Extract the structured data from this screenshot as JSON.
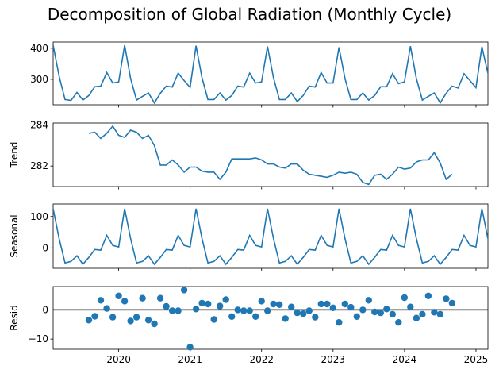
{
  "title": "Decomposition of Global Radiation (Monthly Cycle)",
  "chart_data": [
    {
      "name": "observed",
      "type": "line",
      "ylabel": "",
      "ylim": [
        218,
        420
      ],
      "yticks": [
        300,
        400
      ],
      "ytick_labels": [
        "300",
        "400"
      ],
      "color": "#1f77b4",
      "x_start": 2019.083,
      "x_step": 0.08333,
      "values": [
        410,
        310,
        235,
        232,
        258,
        233,
        248,
        276,
        278,
        322,
        288,
        292,
        410,
        303,
        233,
        245,
        256,
        224,
        255,
        278,
        275,
        320,
        296,
        274,
        408,
        305,
        235,
        235,
        256,
        233,
        248,
        278,
        275,
        320,
        288,
        292,
        406,
        305,
        235,
        235,
        256,
        228,
        248,
        278,
        275,
        322,
        288,
        288,
        403,
        303,
        235,
        235,
        256,
        233,
        248,
        276,
        276,
        318,
        286,
        292,
        407,
        303,
        233,
        245,
        256,
        224,
        255,
        278,
        272,
        318,
        296,
        273,
        405,
        320
      ]
    },
    {
      "name": "trend",
      "type": "line",
      "ylabel": "Trend",
      "ylim": [
        281.0,
        284.1
      ],
      "yticks": [
        282,
        284
      ],
      "ytick_labels": [
        "282",
        "284"
      ],
      "color": "#1f77b4",
      "x_start": 2019.583,
      "x_step": 0.08333,
      "values": [
        283.6,
        283.65,
        283.35,
        283.6,
        283.95,
        283.5,
        283.4,
        283.75,
        283.65,
        283.35,
        283.5,
        283.0,
        282.05,
        282.05,
        282.3,
        282.05,
        281.7,
        281.95,
        281.95,
        281.75,
        281.7,
        281.7,
        281.35,
        281.7,
        282.35,
        282.35,
        282.35,
        282.35,
        282.4,
        282.3,
        282.1,
        282.1,
        281.95,
        281.9,
        282.1,
        282.1,
        281.8,
        281.6,
        281.55,
        281.5,
        281.45,
        281.55,
        281.7,
        281.65,
        281.7,
        281.6,
        281.2,
        281.1,
        281.55,
        281.6,
        281.35,
        281.6,
        281.95,
        281.85,
        281.9,
        282.2,
        282.3,
        282.3,
        282.65,
        282.15,
        281.35,
        281.6
      ]
    },
    {
      "name": "seasonal",
      "type": "line",
      "ylabel": "Seasonal",
      "ylim": [
        -65,
        140
      ],
      "yticks": [
        0,
        100
      ],
      "ytick_labels": [
        "0",
        "100"
      ],
      "color": "#1f77b4",
      "x_start": 2019.083,
      "x_step": 0.08333,
      "values": [
        125,
        30,
        -48,
        -43,
        -25,
        -52,
        -30,
        -5,
        -7,
        40,
        8,
        3,
        125,
        30,
        -48,
        -43,
        -25,
        -52,
        -30,
        -5,
        -7,
        40,
        8,
        3,
        125,
        30,
        -48,
        -43,
        -25,
        -52,
        -30,
        -5,
        -7,
        40,
        8,
        3,
        125,
        30,
        -48,
        -43,
        -25,
        -52,
        -30,
        -5,
        -7,
        40,
        8,
        3,
        125,
        30,
        -48,
        -43,
        -25,
        -52,
        -30,
        -5,
        -7,
        40,
        8,
        3,
        125,
        30,
        -48,
        -43,
        -25,
        -52,
        -30,
        -5,
        -7,
        40,
        8,
        3,
        125,
        30
      ]
    },
    {
      "name": "resid",
      "type": "scatter",
      "ylabel": "Resid",
      "ylim": [
        -13.5,
        8
      ],
      "yticks": [
        -10,
        0
      ],
      "ytick_labels": [
        "−10",
        "0"
      ],
      "baseline": 0,
      "color": "#1f77b4",
      "x_start": 2019.583,
      "x_step": 0.08333,
      "values": [
        -3.5,
        -2.2,
        3.3,
        0.5,
        -2.5,
        4.8,
        3.0,
        -3.8,
        -2.5,
        4.0,
        -3.5,
        -4.8,
        4.0,
        1.2,
        -0.3,
        -0.3,
        6.8,
        -12.8,
        0.3,
        2.3,
        2.0,
        -3.3,
        1.3,
        3.5,
        -2.3,
        0.0,
        -0.3,
        -0.3,
        -2.3,
        3.0,
        -0.3,
        2.0,
        1.8,
        -3.0,
        1.0,
        -1.0,
        -1.3,
        -0.3,
        -2.5,
        2.0,
        2.0,
        0.7,
        -4.3,
        2.0,
        0.9,
        -2.3,
        0.0,
        3.3,
        -0.7,
        -1.0,
        0.3,
        -1.5,
        -4.3,
        4.2,
        1.0,
        -2.8,
        -1.5,
        4.8,
        -0.8,
        -1.5,
        3.8,
        2.3
      ]
    }
  ],
  "x_axis": {
    "xlim": [
      2019.083,
      2025.167
    ],
    "ticks": [
      2020,
      2021,
      2022,
      2023,
      2024,
      2025
    ],
    "tick_labels": [
      "2020",
      "2021",
      "2022",
      "2023",
      "2024",
      "2025"
    ]
  }
}
